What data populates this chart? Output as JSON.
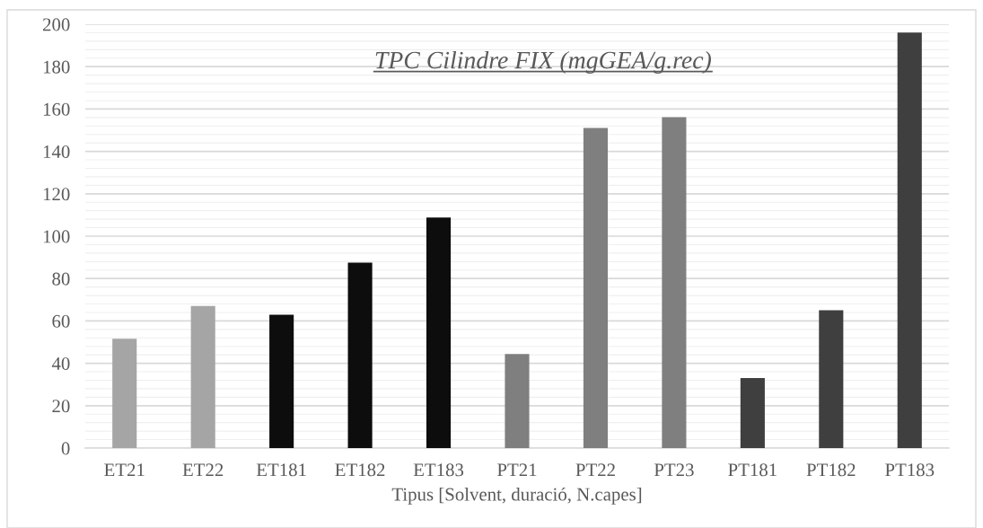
{
  "chart_data": {
    "type": "bar",
    "title": "TPC Cilindre FIX (mgGEA/g.rec)",
    "xlabel": "Tipus [Solvent, duració, N.capes]",
    "categories": [
      "ET21",
      "ET22",
      "ET181",
      "ET182",
      "ET183",
      "PT21",
      "PT22",
      "PT23",
      "PT181",
      "PT182",
      "PT183"
    ],
    "values": [
      51.6,
      67.1,
      62.9,
      87.5,
      108.8,
      44.4,
      151.1,
      156.1,
      33.1,
      65.0,
      196.1
    ],
    "colors": [
      "#a5a5a5",
      "#a5a5a5",
      "#0d0d0d",
      "#0d0d0d",
      "#0d0d0d",
      "#7f7f7f",
      "#7f7f7f",
      "#7f7f7f",
      "#3f3f3f",
      "#3f3f3f",
      "#3f3f3f"
    ],
    "ylim": [
      0,
      200
    ],
    "yticks": [
      0,
      20,
      40,
      60,
      80,
      100,
      120,
      140,
      160,
      180,
      200
    ],
    "grid": "y"
  }
}
